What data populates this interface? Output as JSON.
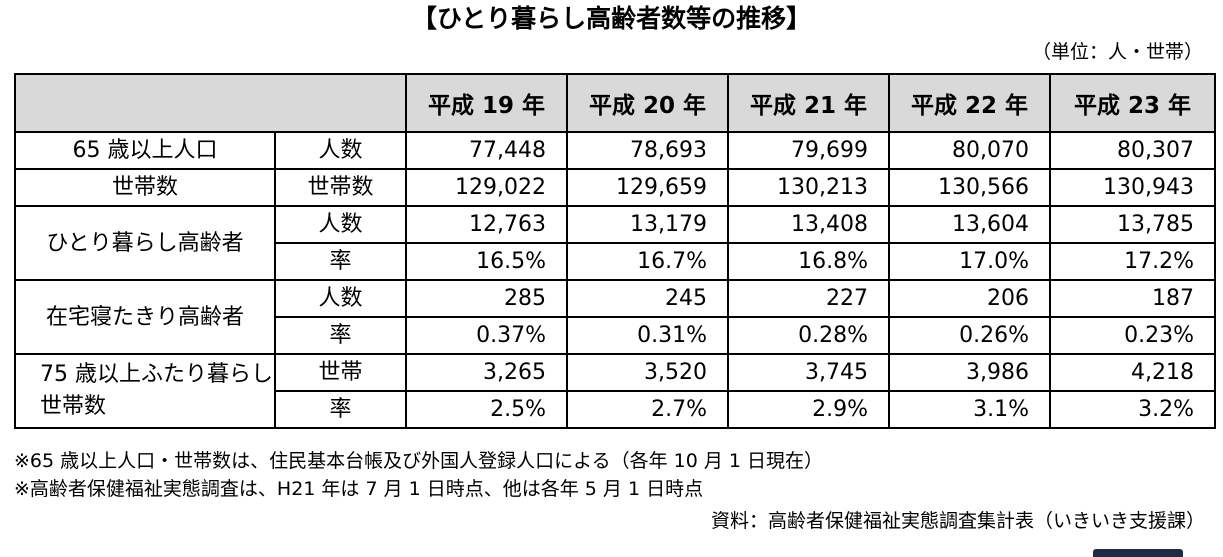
{
  "title": "【ひとり暮らし高齢者数等の推移】",
  "unit": "（単位：人・世帯）",
  "table": {
    "years": [
      "平成 19 年",
      "平成 20 年",
      "平成 21 年",
      "平成 22 年",
      "平成 23 年"
    ],
    "rows": [
      {
        "label": "65 歳以上人口",
        "sub": "人数",
        "values": [
          "77,448",
          "78,693",
          "79,699",
          "80,070",
          "80,307"
        ]
      },
      {
        "label": "世帯数",
        "sub": "世帯数",
        "values": [
          "129,022",
          "129,659",
          "130,213",
          "130,566",
          "130,943"
        ]
      },
      {
        "label": "ひとり暮らし高齢者",
        "sub": "人数",
        "values": [
          "12,763",
          "13,179",
          "13,408",
          "13,604",
          "13,785"
        ]
      },
      {
        "label": "",
        "sub": "率",
        "values": [
          "16.5%",
          "16.7%",
          "16.8%",
          "17.0%",
          "17.2%"
        ]
      },
      {
        "label": "在宅寝たきり高齢者",
        "sub": "人数",
        "values": [
          "285",
          "245",
          "227",
          "206",
          "187"
        ]
      },
      {
        "label": "",
        "sub": "率",
        "values": [
          "0.37%",
          "0.31%",
          "0.28%",
          "0.26%",
          "0.23%"
        ]
      },
      {
        "label": "75 歳以上ふたり暮らし世帯数",
        "sub": "世帯",
        "values": [
          "3,265",
          "3,520",
          "3,745",
          "3,986",
          "4,218"
        ]
      },
      {
        "label": "",
        "sub": "率",
        "values": [
          "2.5%",
          "2.7%",
          "2.9%",
          "3.1%",
          "3.2%"
        ]
      }
    ]
  },
  "notes": [
    "※65 歳以上人口・世帯数は、住民基本台帳及び外国人登録人口による（各年 10 月 1 日現在）",
    "※高齢者保健福祉実態調査は、H21 年は 7 月 1 日時点、他は各年 5 月 1 日時点"
  ],
  "source": "資料：高齢者保健福祉実態調査集計表（いきいき支援課）"
}
